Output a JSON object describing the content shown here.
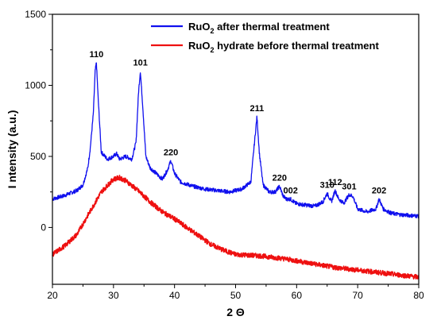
{
  "chart_data": {
    "type": "line",
    "title": "",
    "xlabel": "2 Θ",
    "ylabel": "I ntensity (a.u.)",
    "xlim": [
      20,
      80
    ],
    "ylim": [
      -400,
      1500
    ],
    "x_ticks": [
      20,
      30,
      40,
      50,
      60,
      70,
      80
    ],
    "y_ticks": [
      0,
      500,
      1000,
      1500
    ],
    "grid": false,
    "legend_position": "top-right",
    "series": [
      {
        "name": "RuO2 after thermal treatment",
        "legend": {
          "base": "RuO",
          "sub": "2",
          "rest": " after thermal treatment"
        },
        "color": "#1010ee",
        "points": [
          [
            20,
            200
          ],
          [
            22,
            225
          ],
          [
            24,
            260
          ],
          [
            25,
            300
          ],
          [
            25.8,
            420
          ],
          [
            26.2,
            560
          ],
          [
            26.7,
            800
          ],
          [
            27.0,
            1100
          ],
          [
            27.2,
            1160
          ],
          [
            27.5,
            900
          ],
          [
            28.0,
            530
          ],
          [
            29.0,
            480
          ],
          [
            30.0,
            500
          ],
          [
            30.5,
            520
          ],
          [
            31.0,
            480
          ],
          [
            32.0,
            500
          ],
          [
            33.0,
            480
          ],
          [
            33.7,
            600
          ],
          [
            34.1,
            950
          ],
          [
            34.4,
            1100
          ],
          [
            34.8,
            850
          ],
          [
            35.3,
            500
          ],
          [
            36.0,
            420
          ],
          [
            37.0,
            380
          ],
          [
            38.0,
            340
          ],
          [
            38.8,
            400
          ],
          [
            39.4,
            470
          ],
          [
            40.0,
            380
          ],
          [
            41.0,
            320
          ],
          [
            43.0,
            290
          ],
          [
            45.0,
            270
          ],
          [
            47.0,
            260
          ],
          [
            49.0,
            250
          ],
          [
            51.0,
            270
          ],
          [
            52.5,
            320
          ],
          [
            53.1,
            600
          ],
          [
            53.5,
            780
          ],
          [
            53.9,
            520
          ],
          [
            54.5,
            300
          ],
          [
            55.5,
            250
          ],
          [
            56.5,
            250
          ],
          [
            57.2,
            290
          ],
          [
            57.8,
            220
          ],
          [
            58.3,
            200
          ],
          [
            59.0,
            200
          ],
          [
            59.8,
            170
          ],
          [
            61.0,
            160
          ],
          [
            63.0,
            150
          ],
          [
            64.3,
            180
          ],
          [
            65.0,
            240
          ],
          [
            65.7,
            180
          ],
          [
            66.3,
            260
          ],
          [
            66.9,
            200
          ],
          [
            67.7,
            170
          ],
          [
            68.6,
            230
          ],
          [
            69.2,
            220
          ],
          [
            70.0,
            130
          ],
          [
            71.5,
            110
          ],
          [
            73.0,
            130
          ],
          [
            73.5,
            200
          ],
          [
            74.2,
            130
          ],
          [
            75.5,
            100
          ],
          [
            77.0,
            90
          ],
          [
            80.0,
            80
          ]
        ]
      },
      {
        "name": "RuO2 hydrate before thermal treatment",
        "legend": {
          "base": "RuO",
          "sub": "2",
          "rest": " hydrate before thermal treatment"
        },
        "color": "#ee1010",
        "points": [
          [
            20,
            -190
          ],
          [
            22,
            -130
          ],
          [
            24,
            -50
          ],
          [
            26,
            100
          ],
          [
            28,
            250
          ],
          [
            30,
            340
          ],
          [
            31,
            350
          ],
          [
            32,
            330
          ],
          [
            34,
            260
          ],
          [
            36,
            180
          ],
          [
            38,
            110
          ],
          [
            40,
            60
          ],
          [
            42,
            0
          ],
          [
            44,
            -60
          ],
          [
            46,
            -120
          ],
          [
            48,
            -160
          ],
          [
            50,
            -190
          ],
          [
            54,
            -200
          ],
          [
            58,
            -220
          ],
          [
            62,
            -250
          ],
          [
            66,
            -280
          ],
          [
            70,
            -300
          ],
          [
            74,
            -320
          ],
          [
            80,
            -350
          ]
        ]
      }
    ],
    "peak_labels": [
      {
        "text": "110",
        "x": 27.2,
        "y": 1160
      },
      {
        "text": "101",
        "x": 34.4,
        "y": 1100
      },
      {
        "text": "220",
        "x": 39.4,
        "y": 470
      },
      {
        "text": "211",
        "x": 53.5,
        "y": 780
      },
      {
        "text": "220",
        "x": 57.2,
        "y": 290
      },
      {
        "text": "002",
        "x": 59.0,
        "y": 200
      },
      {
        "text": "310",
        "x": 65.0,
        "y": 240
      },
      {
        "text": "112",
        "x": 66.3,
        "y": 260
      },
      {
        "text": "301",
        "x": 68.6,
        "y": 230
      },
      {
        "text": "202",
        "x": 73.5,
        "y": 200
      }
    ]
  }
}
